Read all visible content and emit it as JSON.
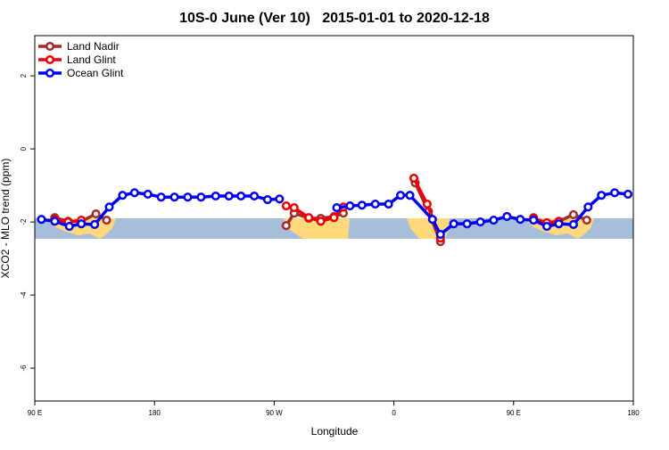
{
  "chart_data": {
    "type": "line",
    "title": "10S-0 June (Ver 10)   2015-01-01 to 2020-12-18",
    "xlabel": "Longitude",
    "ylabel": "XCO2 - MLO trend (ppm)",
    "xlim": [
      90,
      540
    ],
    "ylim": [
      -6.9,
      3.1
    ],
    "xticks": [
      {
        "value": 90,
        "label": "90 E"
      },
      180,
      {
        "value": 270,
        "label": "90 W"
      },
      {
        "value": 360,
        "label": "0"
      },
      {
        "value": 450,
        "label": "90 E"
      },
      {
        "value": 540,
        "label": "180"
      }
    ],
    "yticks": [
      2,
      0,
      -2,
      -4,
      -6
    ],
    "legend": "top-left",
    "series": [
      {
        "name": "Land Nadir",
        "color": "#a52a2a",
        "x": [
          105,
          115,
          125,
          136,
          144,
          null,
          279,
          285,
          296,
          305,
          315,
          322,
          null,
          376,
          386,
          395,
          null,
          465,
          475,
          484,
          495,
          505
        ],
        "values": [
          -1.88,
          -1.98,
          -1.98,
          -1.78,
          -1.95,
          null,
          -2.1,
          -1.76,
          -1.9,
          -1.9,
          -1.85,
          -1.76,
          null,
          -0.93,
          -1.71,
          -2.54,
          null,
          -1.88,
          -2.07,
          -1.98,
          -1.8,
          -1.95
        ]
      },
      {
        "name": "Land Glint",
        "color": "#ee0000",
        "x": [
          105,
          115,
          125,
          null,
          279,
          285,
          296,
          305,
          315,
          322,
          null,
          375,
          385,
          395,
          null,
          465,
          475,
          484
        ],
        "values": [
          -1.93,
          -2.0,
          -1.95,
          null,
          -1.56,
          -1.61,
          -1.88,
          -1.98,
          -1.88,
          -1.59,
          null,
          -0.8,
          -1.51,
          -2.44,
          null,
          -1.9,
          -2.02,
          -1.98
        ]
      },
      {
        "name": "Ocean Glint",
        "color": "#0000ee",
        "x": [
          95,
          105,
          116,
          125,
          135,
          146,
          156,
          165,
          175,
          185,
          195,
          205,
          215,
          226,
          236,
          245,
          255,
          265,
          274,
          null,
          317,
          327,
          336,
          346,
          356,
          365,
          372,
          389,
          395,
          405,
          415,
          425,
          435,
          445,
          455,
          465,
          475,
          484,
          495,
          506,
          516,
          526,
          536
        ],
        "values": [
          -1.93,
          -1.98,
          -2.12,
          -2.05,
          -2.07,
          -1.59,
          -1.27,
          -1.2,
          -1.24,
          -1.32,
          -1.32,
          -1.32,
          -1.32,
          -1.29,
          -1.29,
          -1.29,
          -1.29,
          -1.39,
          -1.37,
          null,
          -1.61,
          -1.56,
          -1.54,
          -1.51,
          -1.51,
          -1.27,
          -1.27,
          -1.93,
          -2.34,
          -2.05,
          -2.05,
          -2.0,
          -1.95,
          -1.85,
          -1.93,
          -1.95,
          -2.12,
          -2.05,
          -2.07,
          -1.59,
          -1.27,
          -1.2,
          -1.24
        ]
      }
    ]
  }
}
